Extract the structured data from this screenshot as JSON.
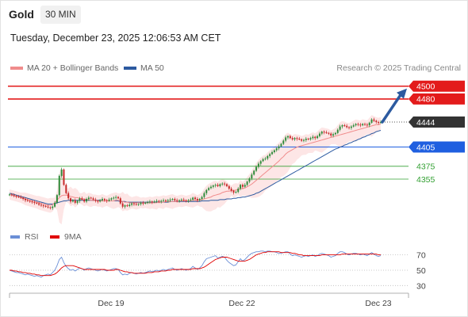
{
  "header": {
    "instrument": "Gold",
    "timeframe": "30 MIN",
    "timestamp": "Tuesday, December 23, 2025 12:06:53 AM CET"
  },
  "legend": {
    "ma20_label": "MA 20 + Bollinger Bands",
    "ma50_label": "MA 50",
    "copyright": "Research © 2025 Trading Central",
    "ma20_color": "#f08c8c",
    "ma50_color": "#2c5aa0"
  },
  "rsi_legend": {
    "rsi_label": "RSI",
    "ma_label": "9MA",
    "rsi_color": "#6b8fd6",
    "ma_color": "#e00000"
  },
  "colors": {
    "resistance": "#e31b1b",
    "pivot": "#1f5fe0",
    "support": "#33a033",
    "last_price_bg": "#333333",
    "bull": "#2e8b3a",
    "bear": "#c62828",
    "arrow": "#2c5aa0",
    "band": "#fde3e3"
  },
  "chart_data": [
    {
      "type": "candlestick",
      "title": "Gold",
      "timeframe": "30 MIN",
      "x_tick_labels": [
        "Dec 19",
        "Dec 22",
        "Dec 23"
      ],
      "y_range": [
        4282,
        4517
      ],
      "grid": false,
      "legend_position": "top-left",
      "last_price": 4444,
      "levels": [
        {
          "value": 4500,
          "label": "4500",
          "kind": "resistance",
          "style": "tag"
        },
        {
          "value": 4480,
          "label": "4480",
          "kind": "resistance",
          "style": "tag"
        },
        {
          "value": 4444,
          "label": "4444",
          "kind": "last",
          "style": "tag"
        },
        {
          "value": 4405,
          "label": "4405",
          "kind": "pivot",
          "style": "tag"
        },
        {
          "value": 4375,
          "label": "4375",
          "kind": "support",
          "style": "text"
        },
        {
          "value": 4355,
          "label": "4355",
          "kind": "support",
          "style": "text"
        }
      ],
      "close": [
        4331,
        4330,
        4329,
        4328,
        4327,
        4326,
        4324,
        4322,
        4321,
        4320,
        4319,
        4318,
        4317,
        4315,
        4314,
        4313,
        4312,
        4311,
        4310,
        4312,
        4318,
        4330,
        4360,
        4370,
        4346,
        4333,
        4325,
        4320,
        4322,
        4318,
        4321,
        4325,
        4323,
        4320,
        4324,
        4326,
        4325,
        4323,
        4321,
        4320,
        4322,
        4324,
        4322,
        4321,
        4323,
        4325,
        4326,
        4327,
        4325,
        4317,
        4312,
        4314,
        4313,
        4315,
        4317,
        4316,
        4315,
        4316,
        4318,
        4317,
        4318,
        4319,
        4320,
        4319,
        4320,
        4321,
        4320,
        4321,
        4322,
        4321,
        4322,
        4323,
        4324,
        4322,
        4321,
        4322,
        4323,
        4322,
        4321,
        4322,
        4323,
        4326,
        4324,
        4322,
        4324,
        4327,
        4333,
        4338,
        4341,
        4343,
        4345,
        4346,
        4344,
        4347,
        4348,
        4347,
        4344,
        4340,
        4337,
        4334,
        4335,
        4340,
        4346,
        4343,
        4346,
        4351,
        4356,
        4362,
        4368,
        4374,
        4379,
        4383,
        4386,
        4387,
        4391,
        4394,
        4397,
        4400,
        4403,
        4406,
        4410,
        4415,
        4420,
        4422,
        4419,
        4417,
        4419,
        4418,
        4417,
        4415,
        4416,
        4418,
        4417,
        4419,
        4421,
        4419,
        4422,
        4426,
        4429,
        4428,
        4427,
        4426,
        4423,
        4425,
        4427,
        4432,
        4437,
        4439,
        4438,
        4436,
        4435,
        4437,
        4439,
        4441,
        4440,
        4439,
        4441,
        4440,
        4439,
        4443,
        4448,
        4446,
        4444,
        4443,
        4444
      ],
      "ma20": [
        4331,
        4330,
        4329,
        4328,
        4327,
        4326,
        4325,
        4324,
        4323,
        4322,
        4321,
        4320,
        4319,
        4318,
        4317,
        4316,
        4315,
        4314,
        4314,
        4315,
        4318,
        4322,
        4326,
        4329,
        4330,
        4330,
        4329,
        4328,
        4327,
        4326,
        4326,
        4325,
        4324,
        4324,
        4323,
        4323,
        4322,
        4322,
        4322,
        4321,
        4321,
        4321,
        4321,
        4321,
        4321,
        4321,
        4321,
        4322,
        4322,
        4321,
        4320,
        4319,
        4319,
        4318,
        4318,
        4318,
        4318,
        4318,
        4318,
        4318,
        4318,
        4318,
        4318,
        4318,
        4318,
        4318,
        4319,
        4319,
        4319,
        4320,
        4320,
        4320,
        4320,
        4320,
        4320,
        4321,
        4321,
        4321,
        4321,
        4321,
        4321,
        4322,
        4322,
        4322,
        4322,
        4323,
        4324,
        4325,
        4326,
        4327,
        4329,
        4330,
        4331,
        4332,
        4334,
        4335,
        4336,
        4336,
        4337,
        4337,
        4338,
        4339,
        4340,
        4340,
        4341,
        4343,
        4345,
        4347,
        4350,
        4353,
        4356,
        4359,
        4362,
        4365,
        4368,
        4371,
        4374,
        4377,
        4380,
        4383,
        4387,
        4390,
        4394,
        4397,
        4399,
        4401,
        4403,
        4405,
        4406,
        4407,
        4408,
        4409,
        4410,
        4411,
        4412,
        4413,
        4414,
        4415,
        4416,
        4417,
        4418,
        4419,
        4420,
        4421,
        4422,
        4423,
        4424,
        4425,
        4426,
        4427,
        4428,
        4429,
        4430,
        4431,
        4432,
        4433,
        4434,
        4435,
        4436,
        4437,
        4438,
        4439,
        4440,
        4440,
        4441
      ],
      "ma50": [
        4333,
        4332,
        4331,
        4330,
        4329,
        4328,
        4327,
        4326,
        4325,
        4324,
        4323,
        4322,
        4321,
        4320,
        4319,
        4318,
        4317,
        4316,
        4316,
        4316,
        4317,
        4318,
        4319,
        4320,
        4321,
        4321,
        4322,
        4322,
        4322,
        4322,
        4322,
        4322,
        4322,
        4322,
        4322,
        4322,
        4322,
        4322,
        4322,
        4322,
        4322,
        4321,
        4321,
        4321,
        4321,
        4321,
        4321,
        4321,
        4321,
        4320,
        4320,
        4320,
        4319,
        4319,
        4319,
        4319,
        4319,
        4319,
        4319,
        4319,
        4319,
        4319,
        4319,
        4319,
        4319,
        4319,
        4319,
        4319,
        4319,
        4319,
        4319,
        4320,
        4320,
        4320,
        4320,
        4320,
        4320,
        4320,
        4320,
        4320,
        4320,
        4320,
        4320,
        4320,
        4320,
        4321,
        4321,
        4321,
        4321,
        4322,
        4322,
        4322,
        4322,
        4323,
        4323,
        4323,
        4324,
        4324,
        4324,
        4325,
        4325,
        4326,
        4326,
        4327,
        4327,
        4328,
        4329,
        4330,
        4331,
        4333,
        4334,
        4336,
        4338,
        4340,
        4342,
        4344,
        4346,
        4348,
        4350,
        4352,
        4354,
        4356,
        4358,
        4360,
        4362,
        4364,
        4366,
        4368,
        4370,
        4372,
        4374,
        4376,
        4378,
        4380,
        4382,
        4384,
        4386,
        4388,
        4390,
        4392,
        4394,
        4396,
        4398,
        4400,
        4402,
        4403,
        4405,
        4406,
        4408,
        4409,
        4411,
        4412,
        4414,
        4415,
        4417,
        4418,
        4420,
        4421,
        4423,
        4424,
        4426,
        4427,
        4429,
        4430,
        4431
      ]
    },
    {
      "type": "line",
      "title": "RSI",
      "y_tick_labels": [
        "70",
        "50",
        "30"
      ],
      "y_range": [
        20,
        82
      ],
      "legend_position": "top-left",
      "series": [
        {
          "name": "RSI",
          "values": [
            50,
            49,
            48,
            47,
            47,
            46,
            45,
            44,
            45,
            44,
            43,
            42,
            43,
            42,
            41,
            43,
            44,
            45,
            44,
            47,
            50,
            56,
            64,
            67,
            60,
            55,
            52,
            50,
            51,
            49,
            51,
            53,
            52,
            50,
            52,
            53,
            52,
            51,
            50,
            49,
            50,
            51,
            50,
            49,
            50,
            51,
            52,
            52,
            51,
            47,
            44,
            45,
            44,
            46,
            47,
            46,
            45,
            46,
            47,
            46,
            47,
            48,
            49,
            48,
            49,
            50,
            49,
            50,
            51,
            50,
            51,
            52,
            53,
            51,
            50,
            51,
            52,
            51,
            50,
            51,
            52,
            55,
            53,
            51,
            53,
            56,
            61,
            65,
            66,
            67,
            68,
            69,
            66,
            67,
            68,
            67,
            63,
            60,
            58,
            56,
            57,
            61,
            65,
            62,
            64,
            67,
            70,
            72,
            73,
            74,
            74,
            75,
            75,
            74,
            75,
            75,
            74,
            74,
            73,
            72,
            72,
            73,
            74,
            74,
            71,
            69,
            70,
            69,
            68,
            67,
            68,
            69,
            68,
            69,
            70,
            68,
            69,
            71,
            72,
            71,
            70,
            69,
            67,
            68,
            69,
            72,
            74,
            74,
            73,
            71,
            70,
            71,
            72,
            72,
            71,
            70,
            71,
            70,
            69,
            71,
            73,
            71,
            69,
            68,
            69
          ]
        },
        {
          "name": "9MA",
          "values": [
            50,
            50,
            49,
            49,
            48,
            48,
            47,
            47,
            46,
            46,
            45,
            45,
            44,
            44,
            43,
            43,
            43,
            43,
            43,
            44,
            45,
            47,
            50,
            53,
            55,
            56,
            56,
            56,
            56,
            55,
            54,
            53,
            52,
            51,
            51,
            51,
            51,
            51,
            51,
            51,
            51,
            51,
            51,
            50,
            50,
            50,
            50,
            51,
            51,
            50,
            49,
            48,
            48,
            47,
            47,
            46,
            46,
            46,
            46,
            46,
            46,
            47,
            47,
            47,
            48,
            48,
            48,
            49,
            49,
            49,
            50,
            50,
            51,
            51,
            51,
            51,
            51,
            51,
            51,
            51,
            51,
            52,
            52,
            52,
            52,
            53,
            54,
            56,
            58,
            60,
            62,
            64,
            65,
            66,
            67,
            67,
            67,
            66,
            65,
            64,
            63,
            62,
            62,
            62,
            62,
            63,
            64,
            66,
            68,
            70,
            71,
            72,
            73,
            73,
            74,
            74,
            74,
            74,
            74,
            74,
            73,
            73,
            73,
            73,
            73,
            72,
            72,
            71,
            70,
            70,
            69,
            69,
            69,
            69,
            69,
            69,
            69,
            69,
            70,
            70,
            70,
            70,
            70,
            70,
            70,
            70,
            70,
            71,
            71,
            71,
            71,
            71,
            71,
            71,
            71,
            71,
            71,
            71,
            71,
            71,
            71,
            71,
            71,
            70,
            70
          ]
        }
      ]
    }
  ]
}
